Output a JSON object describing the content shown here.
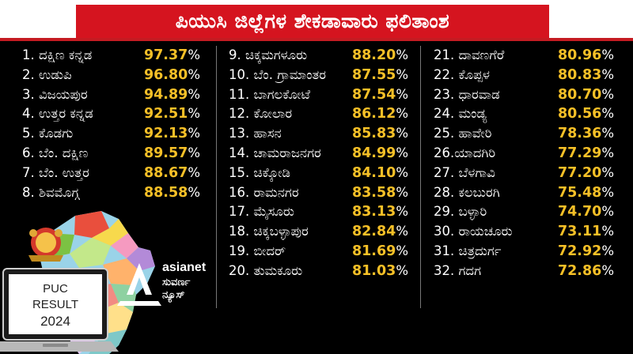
{
  "title": "ಪಿಯುಸಿ ಜಿಲ್ಲೆಗಳ ಶೇಕಡಾವಾರು ಫಲಿತಾಂಶ",
  "percent_sign": "%",
  "colors": {
    "accent_red": "#d5141f",
    "highlight_yellow": "#f6c027",
    "background": "#000000",
    "text": "#ffffff"
  },
  "columns": [
    {
      "rows": [
        {
          "name": "1. ದಕ್ಷಿಣ ಕನ್ನಡ",
          "value": "97.37"
        },
        {
          "name": "2. ಉಡುಪಿ",
          "value": "96.80"
        },
        {
          "name": "3. ವಿಜಯಪುರ",
          "value": "94.89"
        },
        {
          "name": "4. ಉತ್ತರ ಕನ್ನಡ",
          "value": "92.51"
        },
        {
          "name": "5. ಕೊಡಗು",
          "value": "92.13"
        },
        {
          "name": "6. ಬೆಂ. ದಕ್ಷಿಣ",
          "value": "89.57"
        },
        {
          "name": "7. ಬೆಂ. ಉತ್ತರ",
          "value": "88.67"
        },
        {
          "name": "8. ಶಿವಮೊಗ್ಗ",
          "value": "88.58"
        }
      ]
    },
    {
      "rows": [
        {
          "name": "9. ಚಿಕ್ಕಮಗಳೂರು",
          "value": "88.20"
        },
        {
          "name": "10. ಬೆಂ. ಗ್ರಾಮಾಂತರ",
          "value": "87.55"
        },
        {
          "name": "11. ಬಾಗಲಕೋಟೆ",
          "value": "87.54"
        },
        {
          "name": "12. ಕೋಲಾರ",
          "value": "86.12"
        },
        {
          "name": "13. ಹಾಸನ",
          "value": "85.83"
        },
        {
          "name": "14. ಚಾಮರಾಜನಗರ",
          "value": "84.99"
        },
        {
          "name": "15. ಚಿಕ್ಕೋಡಿ",
          "value": "84.10"
        },
        {
          "name": "16. ರಾಮನಗರ",
          "value": "83.58"
        },
        {
          "name": "17. ಮೈಸೂರು",
          "value": "83.13"
        },
        {
          "name": "18. ಚಿಕ್ಕಬಳ್ಳಾಪುರ",
          "value": "82.84"
        },
        {
          "name": "19. ಬೀದರ್",
          "value": "81.69"
        },
        {
          "name": "20. ತುಮಕೂರು",
          "value": "81.03"
        }
      ]
    },
    {
      "rows": [
        {
          "name": "21. ದಾವಣಗೆರೆ",
          "value": "80.96"
        },
        {
          "name": "22. ಕೊಪ್ಪಳ",
          "value": "80.83"
        },
        {
          "name": "23. ಧಾರವಾಡ",
          "value": "80.70"
        },
        {
          "name": "24. ಮಂಡ್ಯ",
          "value": "80.56"
        },
        {
          "name": "25. ಹಾವೇರಿ",
          "value": "78.36"
        },
        {
          "name": "26.ಯಾದಗಿರಿ",
          "value": "77.29"
        },
        {
          "name": "27. ಬೆಳಗಾವಿ",
          "value": "77.20"
        },
        {
          "name": "28. ಕಲಬುರಗಿ",
          "value": "75.48"
        },
        {
          "name": "29. ಬಳ್ಳಾರಿ",
          "value": "74.70"
        },
        {
          "name": "30. ರಾಯಚೂರು",
          "value": "73.11"
        },
        {
          "name": "31. ಚಿತ್ರದುರ್ಗ",
          "value": "72.92"
        },
        {
          "name": "32. ಗದಗ",
          "value": "72.86"
        }
      ]
    }
  ],
  "laptop": {
    "line1": "PUC",
    "line2": "RESULT",
    "line3": "2024"
  },
  "brand": {
    "name": "asianet",
    "sub1": "ಸುವರ್ಣ",
    "sub2": "ನ್ಯೂಸ್"
  },
  "icons": [
    "karnataka-emblem-icon",
    "karnataka-map-icon",
    "laptop-icon",
    "asianet-logo-icon"
  ]
}
